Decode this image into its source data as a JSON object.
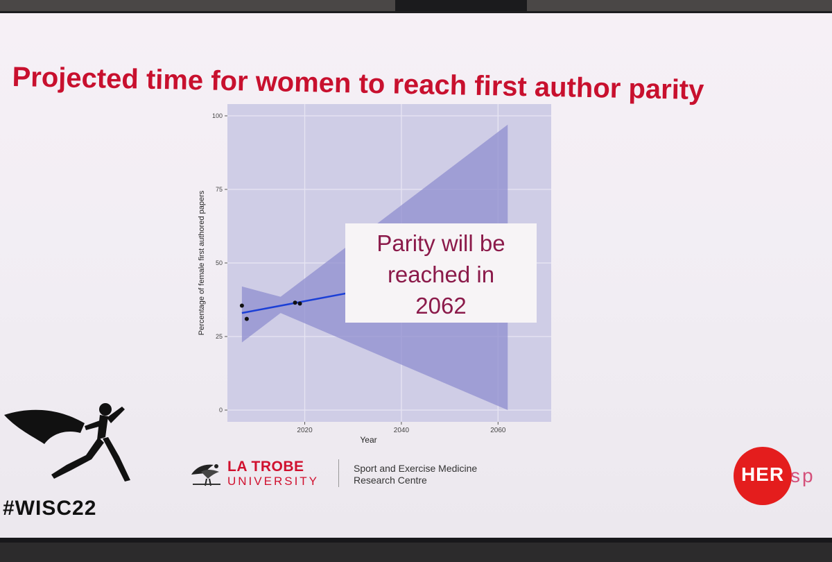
{
  "slide": {
    "title": "Projected time for women to reach first author parity",
    "callout": {
      "line1": "Parity will be",
      "line2": "reached in",
      "line3": "2062"
    }
  },
  "chart_data": {
    "type": "scatter",
    "title": "",
    "xlabel": "Year",
    "ylabel": "Percentage of female first authored papers",
    "xlim": [
      2004,
      2071
    ],
    "ylim": [
      -4,
      104
    ],
    "x_ticks": [
      2020,
      2040,
      2060
    ],
    "y_ticks": [
      0,
      25,
      50,
      75,
      100
    ],
    "points": [
      {
        "x": 2007,
        "y": 35.5
      },
      {
        "x": 2008,
        "y": 31
      },
      {
        "x": 2018,
        "y": 36.5
      },
      {
        "x": 2019,
        "y": 36.2
      }
    ],
    "trend_line": {
      "x": [
        2007,
        2062
      ],
      "y": [
        33,
        50
      ]
    },
    "confidence_band": {
      "x": [
        2007,
        2015,
        2062
      ],
      "upper": [
        42,
        38.5,
        97
      ],
      "lower": [
        23,
        33,
        0
      ]
    },
    "grid": true,
    "legend": "none",
    "colors": {
      "panel": "#cfcde6",
      "band": "#8f8dcf",
      "line": "#1b3fd6",
      "point": "#111111"
    }
  },
  "branding": {
    "hashtag": "#WISC22",
    "university_name": "LA TROBE",
    "university_sub": "UNIVERSITY",
    "centre_line1": "Sport and Exercise Medicine",
    "centre_line2": "Research Centre",
    "hersport_her": "HER",
    "hersport_rest": "sp"
  },
  "icons": {
    "runner": "superhero-runner-icon",
    "latrobe": "latrobe-bird-logo-icon"
  }
}
